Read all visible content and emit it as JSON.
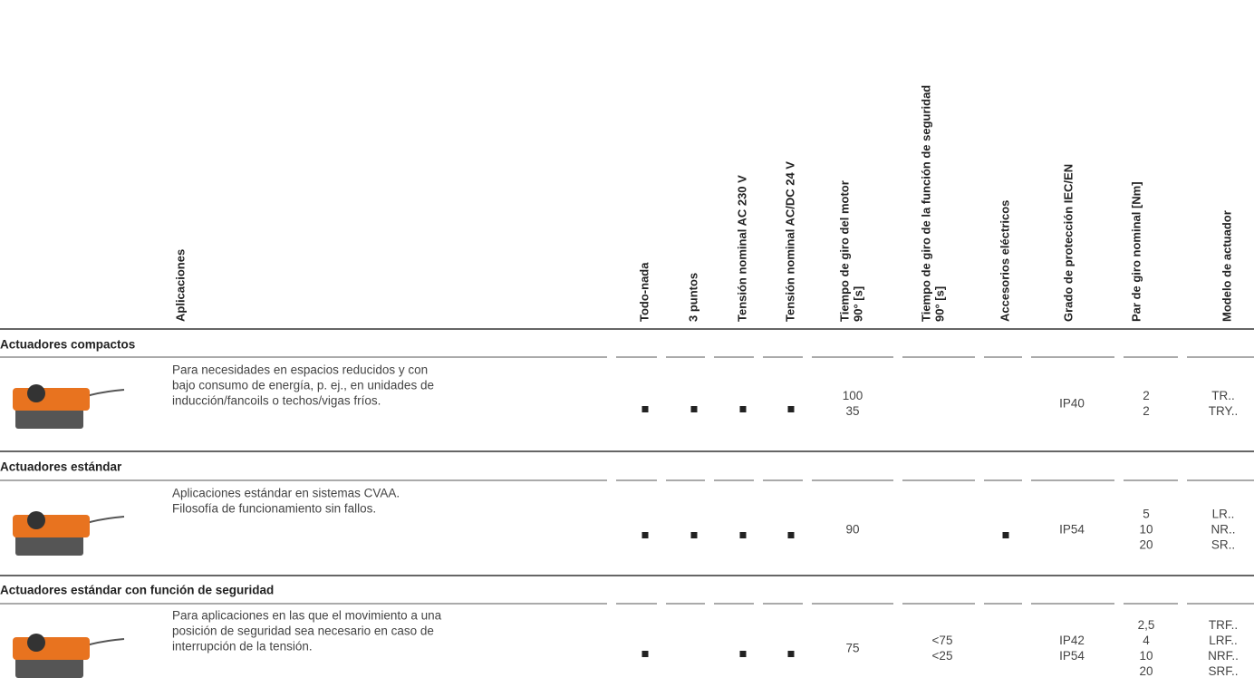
{
  "header": {
    "columns": [
      [
        "Aplicaciones"
      ],
      [
        "Todo-nada"
      ],
      [
        "3 puntos"
      ],
      [
        "Tensión nominal AC 230 V"
      ],
      [
        "Tensión nominal AC/DC 24 V"
      ],
      [
        "Tiempo de giro del motor",
        "90° [s]"
      ],
      [
        "Tiempo de giro de la función de seguridad",
        "90° [s]"
      ],
      [
        "Accesorios eléctricos"
      ],
      [
        "Grado de protección IEC/EN"
      ],
      [
        "Par de giro nominal [Nm]"
      ],
      [
        "Modelo de actuador"
      ]
    ]
  },
  "sections": [
    {
      "title": "Actuadores compactos",
      "description": [
        "Para necesidades en espacios reducidos y con",
        "bajo consumo de energía, p. ej., en unidades de",
        "inducción/fancoils o techos/vigas fríos."
      ],
      "cells": [
        true,
        true,
        true,
        true,
        [
          "100",
          "35"
        ],
        [],
        false,
        [
          "IP40"
        ],
        [
          "2",
          "2"
        ],
        [
          "TR..",
          "TRY.."
        ]
      ]
    },
    {
      "title": "Actuadores estándar",
      "description": [
        "Aplicaciones estándar en sistemas CVAA.",
        "Filosofía de funcionamiento sin fallos."
      ],
      "cells": [
        true,
        true,
        true,
        true,
        [
          "90"
        ],
        [],
        true,
        [
          "IP54"
        ],
        [
          "5",
          "10",
          "20"
        ],
        [
          "LR..",
          "NR..",
          "SR.."
        ]
      ]
    },
    {
      "title": "Actuadores estándar con función de seguridad",
      "description": [
        "Para aplicaciones en las que el movimiento a una",
        "posición de seguridad sea necesario en caso de",
        "interrupción de la tensión."
      ],
      "cells": [
        true,
        false,
        true,
        true,
        [
          "75"
        ],
        [
          "<75",
          "<25"
        ],
        false,
        [
          "IP42",
          "IP54"
        ],
        [
          "2,5",
          "4",
          "10",
          "20"
        ],
        [
          "TRF..",
          "LRF..",
          "NRF..",
          "SRF.."
        ]
      ]
    }
  ]
}
